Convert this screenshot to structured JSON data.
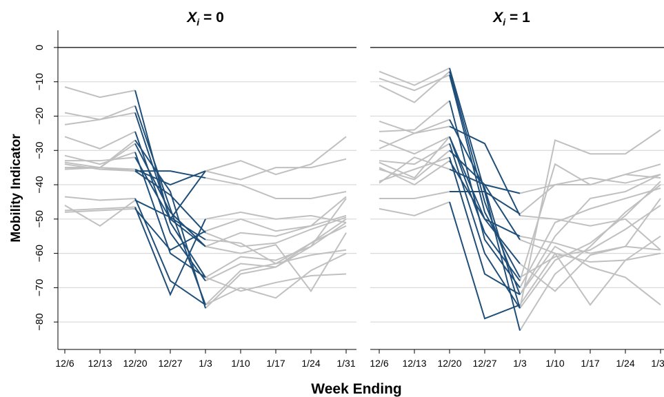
{
  "chart_data": {
    "type": "line",
    "title": "",
    "xlabel": "Week Ending",
    "ylabel": "Mobility Indicator",
    "ylim": [
      -88,
      5
    ],
    "yticks": [
      0,
      -10,
      -20,
      -30,
      -40,
      -50,
      -60,
      -70,
      -80
    ],
    "categories": [
      "12/6",
      "12/13",
      "12/20",
      "12/27",
      "1/3",
      "1/10",
      "1/17",
      "1/24",
      "1/31"
    ],
    "grid": true,
    "colors": {
      "pre_period": "#c0c0c0",
      "transition": "#1f4e79",
      "post_period": "#c0c0c0",
      "grid": "#d9d9d9",
      "zero_line": "#000000"
    },
    "panels": [
      {
        "title_var": "X",
        "title_sub": "i",
        "title_rest": " = 0",
        "series": [
          {
            "values": [
              -11.5,
              -14.5,
              -12.5,
              -51,
              -67,
              -61,
              -62,
              -58,
              -51
            ]
          },
          {
            "values": [
              -19,
              -21,
              -17,
              -47,
              -75,
              -65,
              -63,
              -57,
              -52
            ]
          },
          {
            "values": [
              -22.5,
              -21,
              -19,
              -50,
              -58,
              -54,
              -55,
              -52,
              -49
            ]
          },
          {
            "values": [
              -26,
              -29.5,
              -24.5,
              -54,
              -68,
              -63,
              -64,
              -57,
              -50
            ]
          },
          {
            "values": [
              -31.5,
              -34,
              -30.5,
              -60,
              -67,
              -71,
              -68.5,
              -66.5,
              -66
            ]
          },
          {
            "values": [
              -33,
              -33,
              -32,
              -50,
              -36,
              -33,
              -37,
              -34,
              -26
            ]
          },
          {
            "values": [
              -33.5,
              -35,
              -36,
              -43,
              -54,
              -58,
              -57,
              -53,
              -49.5
            ]
          },
          {
            "values": [
              -34,
              -35.5,
              -36,
              -36,
              -38,
              -40,
              -44,
              -44,
              -42
            ]
          },
          {
            "values": [
              -35,
              -35,
              -35.5,
              -40,
              -36,
              -38.5,
              -35,
              -35,
              -32.5
            ]
          },
          {
            "values": [
              -43.5,
              -44.5,
              -44,
              -68,
              -75,
              -70,
              -73,
              -65,
              -60
            ]
          },
          {
            "values": [
              -47.5,
              -47,
              -46.5,
              -72,
              -50,
              -48,
              -50,
              -49,
              -51
            ]
          },
          {
            "values": [
              -46,
              -52,
              -44.5,
              -49.5,
              -56,
              -57,
              -63,
              -60.5,
              -59
            ]
          },
          {
            "values": [
              -48,
              -47.5,
              -47,
              -59,
              -53.5,
              -50,
              -53.5,
              -52,
              -43.5
            ]
          },
          {
            "values": [
              -35,
              -35,
              -28,
              -48,
              -58,
              -60,
              -57.5,
              -71,
              -54
            ]
          },
          {
            "values": [
              -35.5,
              -35,
              -27,
              -42,
              -76,
              -66,
              -64,
              -58,
              -44
            ]
          }
        ]
      },
      {
        "title_var": "X",
        "title_sub": "i",
        "title_rest": " = 1",
        "series": [
          {
            "values": [
              -7,
              -11,
              -6,
              -42,
              -82.5,
              -66,
              -58,
              -48,
              -40
            ]
          },
          {
            "values": [
              -9,
              -12.5,
              -8,
              -48,
              -67,
              -61,
              -59,
              -53,
              -46
            ]
          },
          {
            "values": [
              -11,
              -16,
              -7,
              -45,
              -72,
              -55,
              -44,
              -42,
              -37
            ]
          },
          {
            "values": [
              -21.5,
              -25,
              -21,
              -41,
              -76,
              -62,
              -57,
              -49,
              -39
            ]
          },
          {
            "values": [
              -24.5,
              -24,
              -15.5,
              -56,
              -70,
              -51,
              -47,
              -44,
              -41
            ]
          },
          {
            "values": [
              -27,
              -31,
              -26,
              -50,
              -55,
              -57,
              -60,
              -58,
              -59
            ]
          },
          {
            "values": [
              -29.5,
              -25,
              -23,
              -28,
              -49,
              -50,
              -52,
              -50,
              -59
            ]
          },
          {
            "values": [
              -33,
              -34,
              -28,
              -60,
              -76,
              -27,
              -31,
              -31,
              -24
            ]
          },
          {
            "values": [
              -33.5,
              -38,
              -26,
              -54,
              -68,
              -34,
              -40,
              -37,
              -34
            ]
          },
          {
            "values": [
              -35.5,
              -38.5,
              -30,
              -40,
              -42.5,
              -40,
              -38,
              -39.5,
              -37
            ]
          },
          {
            "values": [
              -39,
              -35.5,
              -32,
              -66,
              -72,
              -58,
              -64,
              -67,
              -75
            ]
          },
          {
            "values": [
              -44,
              -44,
              -42,
              -42,
              -48.5,
              -40,
              -40,
              -37,
              -38
            ]
          },
          {
            "values": [
              -47,
              -49,
              -45,
              -79,
              -75,
              -60,
              -75,
              -62,
              -60
            ]
          },
          {
            "values": [
              -35,
              -40,
              -33,
              -50,
              -63,
              -71,
              -60.5,
              -58,
              -44
            ]
          },
          {
            "values": [
              -39.5,
              -32,
              -35.5,
              -40,
              -56,
              -60,
              -62.5,
              -62,
              -55
            ]
          }
        ]
      }
    ]
  }
}
